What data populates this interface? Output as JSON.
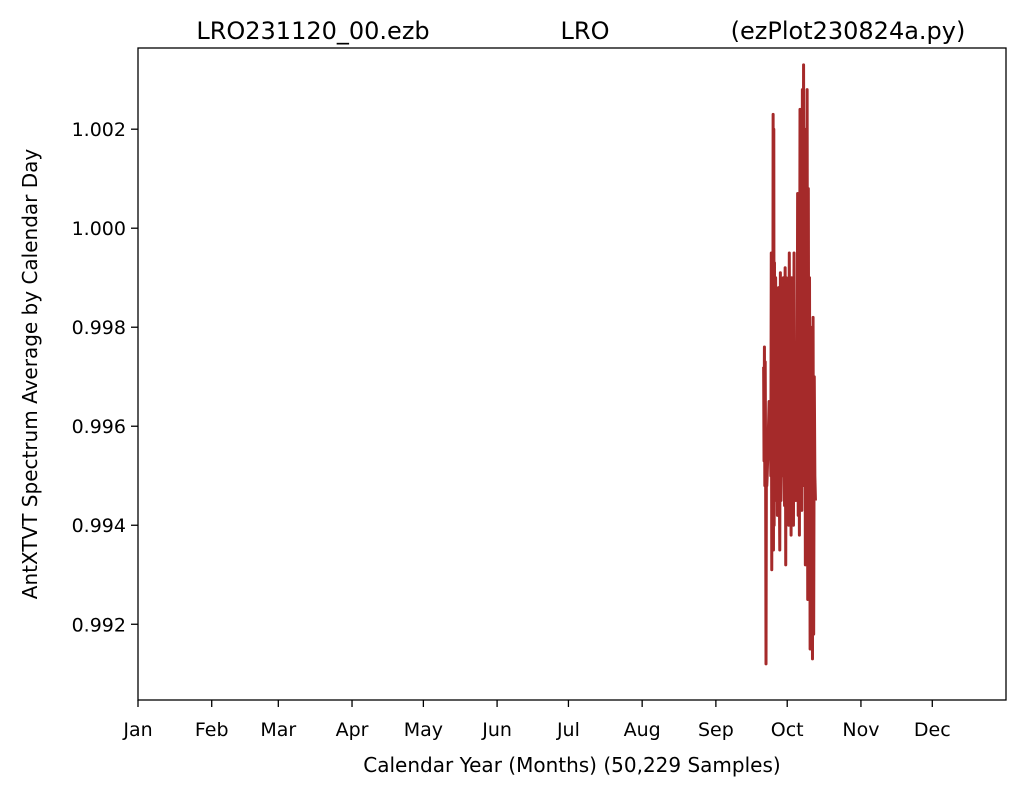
{
  "chart_data": {
    "type": "line",
    "title_left": "LRO231120_00.ezb",
    "title_center": "LRO",
    "title_right": "(ezPlot230824a.py)",
    "xlabel": "Calendar Year (Months) (50,229 Samples)",
    "ylabel": "AntXTVT Spectrum Average by Calendar Day",
    "x_tick_labels": [
      "Jan",
      "Feb",
      "Mar",
      "Apr",
      "May",
      "Jun",
      "Jul",
      "Aug",
      "Sep",
      "Oct",
      "Nov",
      "Dec"
    ],
    "y_ticks": [
      0.992,
      0.994,
      0.996,
      0.998,
      1.0,
      1.002
    ],
    "y_tick_labels": [
      "0.992",
      "0.994",
      "0.996",
      "0.998",
      "1.000",
      "1.002"
    ],
    "xlim": [
      "2023-01-01",
      "2024-01-01"
    ],
    "ylim": [
      0.99047,
      1.00364
    ],
    "grid": false,
    "series": [
      {
        "color": "#a52a2a",
        "x": [
          "2023-09-21",
          "2023-09-21",
          "2023-09-21",
          "2023-09-21",
          "2023-09-21",
          "2023-09-21",
          "2023-09-22",
          "2023-09-22",
          "2023-09-22",
          "2023-09-22",
          "2023-09-22",
          "2023-09-22",
          "2023-09-23",
          "2023-09-23",
          "2023-09-23",
          "2023-09-23",
          "2023-09-24",
          "2023-09-24",
          "2023-09-24",
          "2023-09-24",
          "2023-09-24",
          "2023-09-25",
          "2023-09-25",
          "2023-09-25",
          "2023-09-25",
          "2023-09-25",
          "2023-09-25",
          "2023-09-25",
          "2023-09-26",
          "2023-09-26",
          "2023-09-26",
          "2023-09-26",
          "2023-09-27",
          "2023-09-27",
          "2023-09-27",
          "2023-09-27",
          "2023-09-28",
          "2023-09-28",
          "2023-09-28",
          "2023-09-28",
          "2023-09-29",
          "2023-09-29",
          "2023-09-29",
          "2023-09-29",
          "2023-09-30",
          "2023-09-30",
          "2023-09-30",
          "2023-09-30",
          "2023-10-01",
          "2023-10-01",
          "2023-10-01",
          "2023-10-01",
          "2023-10-02",
          "2023-10-02",
          "2023-10-02",
          "2023-10-02",
          "2023-10-03",
          "2023-10-03",
          "2023-10-03",
          "2023-10-03",
          "2023-10-04",
          "2023-10-04",
          "2023-10-04",
          "2023-10-04",
          "2023-10-05",
          "2023-10-05",
          "2023-10-05",
          "2023-10-05",
          "2023-10-06",
          "2023-10-06",
          "2023-10-06",
          "2023-10-06",
          "2023-10-07",
          "2023-10-07",
          "2023-10-07",
          "2023-10-07",
          "2023-10-08",
          "2023-10-08",
          "2023-10-08",
          "2023-10-08",
          "2023-10-09",
          "2023-10-09",
          "2023-10-09",
          "2023-10-09",
          "2023-10-10",
          "2023-10-10",
          "2023-10-10",
          "2023-10-10",
          "2023-10-11",
          "2023-10-11",
          "2023-10-11",
          "2023-10-11",
          "2023-10-12",
          "2023-10-12",
          "2023-10-12",
          "2023-10-12"
        ],
        "y": [
          0.9972,
          0.9953,
          0.9976,
          0.9948,
          0.9973,
          0.9951,
          0.9912,
          0.9954,
          0.9948,
          0.995,
          0.9953,
          0.9955,
          0.996,
          0.9965,
          0.9962,
          0.996,
          0.995,
          0.9995,
          0.9931,
          0.999,
          0.9936,
          1.0023,
          0.9935,
          1.002,
          0.994,
          0.9993,
          0.9945,
          0.995,
          0.999,
          0.996,
          0.9985,
          0.9942,
          0.9965,
          0.9988,
          0.9952,
          0.9935,
          0.9991,
          0.9945,
          0.996,
          0.9975,
          0.995,
          0.999,
          0.9958,
          0.9944,
          0.9992,
          0.9932,
          0.999,
          0.9942,
          0.996,
          0.9975,
          0.994,
          0.9995,
          0.995,
          0.9965,
          0.9938,
          0.999,
          0.9955,
          0.997,
          0.994,
          0.9995,
          0.9952,
          0.9958,
          0.9945,
          0.9955,
          0.995,
          1.0007,
          0.9942,
          0.9985,
          0.9938,
          1.0024,
          0.9945,
          1.0012,
          0.9943,
          1.0028,
          0.9948,
          1.0033,
          0.995,
          1.002,
          0.9932,
          1.0004,
          0.9942,
          1.0028,
          0.9925,
          1.0008,
          0.994,
          0.999,
          0.9915,
          0.998,
          0.9945,
          0.997,
          0.9913,
          0.9982,
          0.9918,
          0.997,
          0.995,
          0.9945
        ]
      }
    ]
  }
}
